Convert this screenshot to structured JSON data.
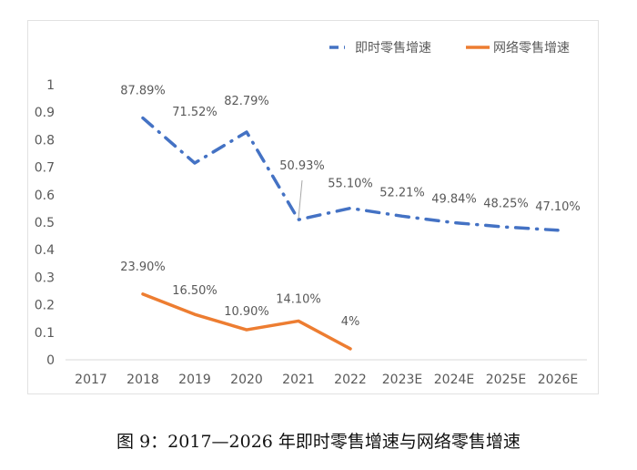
{
  "chart_data": {
    "type": "line",
    "title": "",
    "categories": [
      "2017",
      "2018",
      "2019",
      "2020",
      "2021",
      "2022",
      "2023E",
      "2024E",
      "2025E",
      "2026E"
    ],
    "ylim": [
      0,
      1
    ],
    "yticks": [
      "0",
      "0.1",
      "0.2",
      "0.3",
      "0.4",
      "0.5",
      "0.6",
      "0.7",
      "0.8",
      "0.9",
      "1"
    ],
    "grid": false,
    "legend_position": "top-right",
    "series": [
      {
        "name": "即时零售增速",
        "color": "#4472C4",
        "style": "dash-dot",
        "values": [
          null,
          0.8789,
          0.7152,
          0.8279,
          0.5093,
          0.551,
          0.5221,
          0.4984,
          0.4825,
          0.471
        ],
        "labels": [
          null,
          "87.89%",
          "71.52%",
          "82.79%",
          "50.93%",
          "55.10%",
          "52.21%",
          "49.84%",
          "48.25%",
          "47.10%"
        ]
      },
      {
        "name": "网络零售增速",
        "color": "#ED7D31",
        "style": "solid",
        "values": [
          null,
          0.239,
          0.165,
          0.109,
          0.141,
          0.04,
          null,
          null,
          null,
          null
        ],
        "labels": [
          null,
          "23.90%",
          "16.50%",
          "10.90%",
          "14.10%",
          "4%",
          null,
          null,
          null,
          null
        ]
      }
    ]
  },
  "caption": "图 9：2017—2026 年即时零售增速与网络零售增速"
}
